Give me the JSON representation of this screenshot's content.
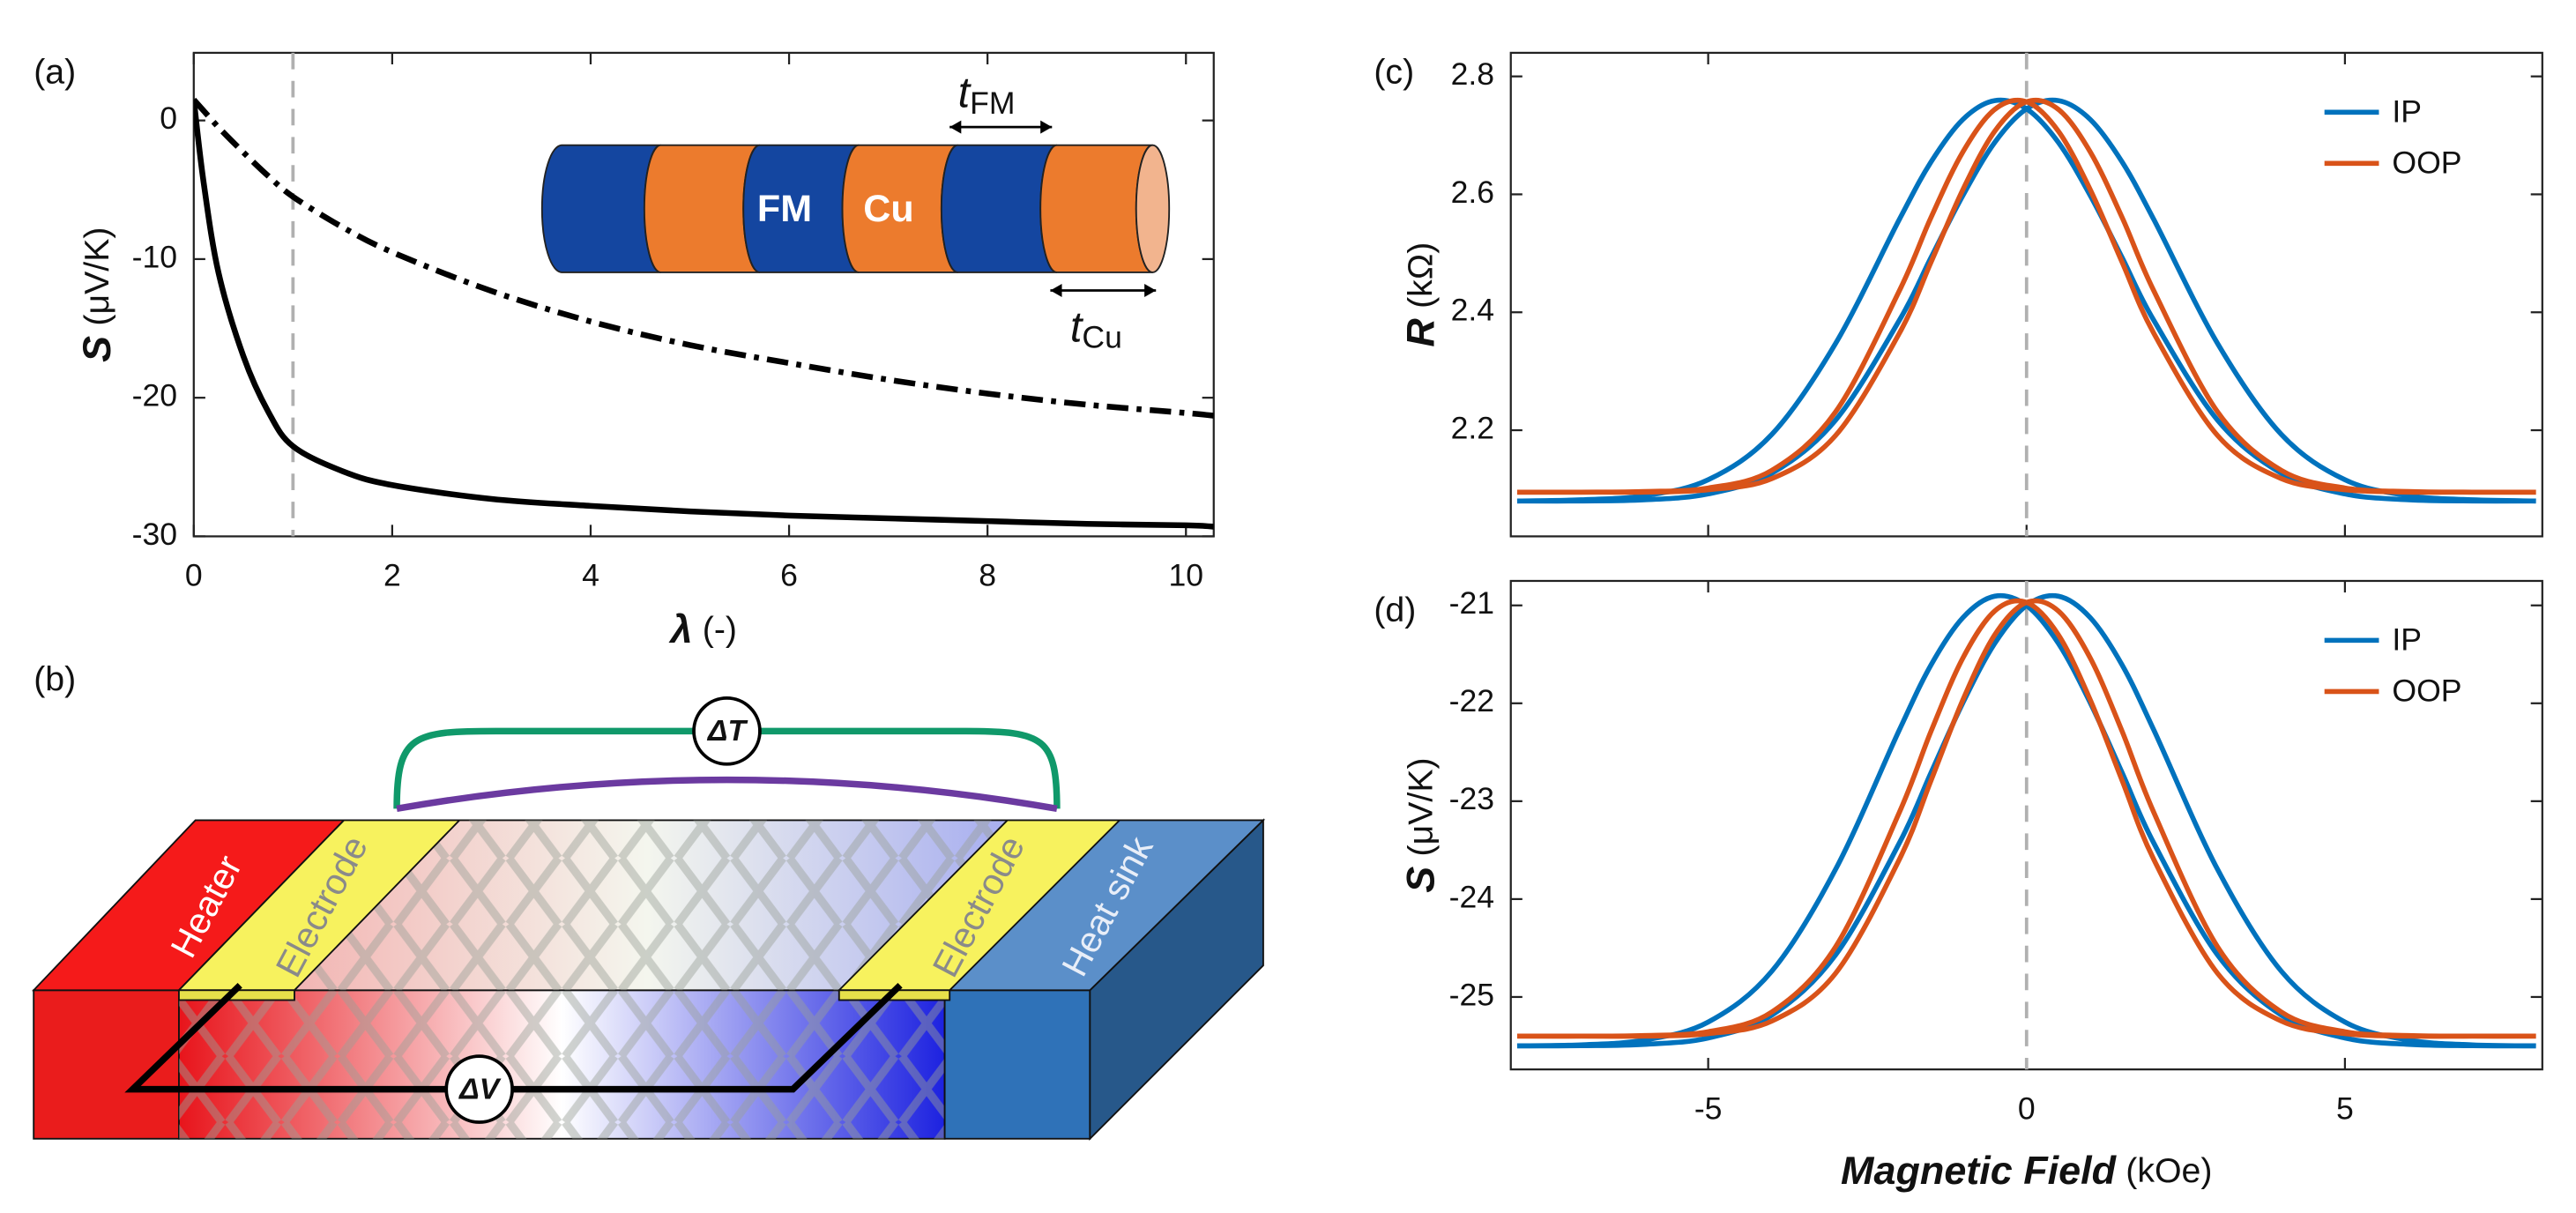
{
  "panel_labels": [
    "(a)",
    "(b)",
    "(c)",
    "(d)"
  ],
  "inset": {
    "fm": "FM",
    "cu": "Cu",
    "t_fm": {
      "symbol": "t",
      "sub": "FM"
    },
    "t_cu": {
      "symbol": "t",
      "sub": "Cu"
    }
  },
  "diagram": {
    "heater": "Heater",
    "electrode_left": "Electrode",
    "electrode_right": "Electrode",
    "heat_sink": "Heat sink",
    "delta_t": "ΔT",
    "delta_v": "ΔV"
  },
  "chart_data": [
    {
      "type": "line",
      "xlabel": {
        "symbol": "λ",
        "unit": "(-)"
      },
      "ylabel": {
        "symbol": "S",
        "unit": "(μV/K)"
      },
      "xlim": [
        0,
        10.28
      ],
      "ylim": [
        -30,
        4.88
      ],
      "xticks": [
        0,
        2,
        4,
        6,
        8,
        10
      ],
      "yticks": [
        0,
        -10,
        -20,
        -30
      ],
      "vline": 1,
      "x": [
        0,
        0.1,
        0.25,
        0.5,
        0.75,
        1,
        1.5,
        2,
        3,
        4,
        5,
        6,
        7,
        8,
        9,
        10,
        10.28
      ],
      "series": [
        {
          "color": "#000000",
          "style": "solid",
          "values": [
            1.5,
            -4.5,
            -11,
            -17,
            -21,
            -23.5,
            -25.3,
            -26.3,
            -27.3,
            -27.8,
            -28.2,
            -28.5,
            -28.7,
            -28.9,
            -29.1,
            -29.2,
            -29.3
          ]
        },
        {
          "color": "#000000",
          "style": "dashdot",
          "values": [
            1.5,
            0.7,
            -0.5,
            -2.3,
            -4,
            -5.5,
            -7.7,
            -9.5,
            -12.3,
            -14.5,
            -16.2,
            -17.5,
            -18.7,
            -19.7,
            -20.5,
            -21.1,
            -21.3
          ]
        }
      ]
    },
    {
      "type": "line",
      "ylabel": {
        "symbol": "R",
        "unit": "(kΩ)"
      },
      "xlim": [
        -8.1,
        8.1
      ],
      "ylim": [
        2.02,
        2.84
      ],
      "xticks": [
        -5,
        0,
        5
      ],
      "xtick_labels": false,
      "yticks": [
        2.2,
        2.4,
        2.6,
        2.8
      ],
      "vline": 0,
      "legend": "northeast",
      "x": [
        -8,
        -7,
        -6,
        -5,
        -4,
        -3,
        -2,
        -1.5,
        -1,
        -0.5,
        0,
        0.5,
        1,
        1.5,
        2,
        3,
        4,
        5,
        6,
        7,
        8
      ],
      "series": [
        {
          "name": "IP",
          "color": "#0072bd",
          "values": [
            [
              2.08,
              2.082,
              2.089,
              2.116,
              2.193,
              2.347,
              2.557,
              2.655,
              2.727,
              2.759,
              2.745,
              2.688,
              2.598,
              2.493,
              2.386,
              2.217,
              2.127,
              2.092,
              2.082,
              2.08,
              2.08
            ],
            [
              2.08,
              2.08,
              2.082,
              2.092,
              2.127,
              2.217,
              2.386,
              2.493,
              2.598,
              2.688,
              2.745,
              2.759,
              2.727,
              2.655,
              2.557,
              2.347,
              2.193,
              2.116,
              2.089,
              2.082,
              2.08
            ]
          ]
        },
        {
          "name": "OOP",
          "color": "#d95319",
          "values": [
            [
              2.095,
              2.095,
              2.096,
              2.102,
              2.132,
              2.231,
              2.436,
              2.561,
              2.672,
              2.744,
              2.757,
              2.707,
              2.608,
              2.485,
              2.364,
              2.191,
              2.118,
              2.099,
              2.095,
              2.095,
              2.095
            ],
            [
              2.095,
              2.095,
              2.095,
              2.099,
              2.118,
              2.191,
              2.364,
              2.485,
              2.608,
              2.707,
              2.757,
              2.744,
              2.672,
              2.561,
              2.436,
              2.231,
              2.132,
              2.102,
              2.096,
              2.095,
              2.095
            ]
          ]
        }
      ]
    },
    {
      "type": "line",
      "xlabel": {
        "symbol": "Magnetic Field",
        "unit": "(kOe)"
      },
      "ylabel": {
        "symbol": "S",
        "unit": "(μV/K)"
      },
      "xlim": [
        -8.1,
        8.1
      ],
      "ylim": [
        -25.74,
        -20.75
      ],
      "xticks": [
        -5,
        0,
        5
      ],
      "yticks": [
        -25,
        -24,
        -23,
        -22,
        -21
      ],
      "vline": 0,
      "legend": "northeast",
      "x": [
        -8,
        -7,
        -6,
        -5,
        -4,
        -3,
        -2,
        -1.5,
        -1,
        -0.5,
        0,
        0.5,
        1,
        1.5,
        2,
        3,
        4,
        5,
        6,
        7,
        8
      ],
      "series": [
        {
          "name": "IP",
          "color": "#0072bd",
          "values": [
            [
              -25.499,
              -25.489,
              -25.44,
              -25.256,
              -24.736,
              -23.697,
              -22.275,
              -21.608,
              -21.125,
              -20.906,
              -21.001,
              -21.388,
              -21.995,
              -22.708,
              -23.43,
              -24.571,
              -25.185,
              -25.419,
              -25.484,
              -25.498,
              -25.5
            ],
            [
              -25.5,
              -25.498,
              -25.484,
              -25.419,
              -25.185,
              -24.571,
              -23.43,
              -22.708,
              -21.995,
              -21.388,
              -21.001,
              -20.906,
              -21.125,
              -21.608,
              -22.275,
              -23.697,
              -24.736,
              -25.256,
              -25.44,
              -25.489,
              -25.499
            ]
          ]
        },
        {
          "name": "OOP",
          "color": "#d95319",
          "values": [
            [
              -25.4,
              -25.4,
              -25.394,
              -25.355,
              -25.153,
              -24.488,
              -23.117,
              -22.285,
              -21.537,
              -21.057,
              -20.97,
              -21.301,
              -21.965,
              -22.788,
              -23.598,
              -24.759,
              -25.246,
              -25.375,
              -25.4,
              -25.4,
              -25.4
            ],
            [
              -25.4,
              -25.4,
              -25.4,
              -25.375,
              -25.246,
              -24.759,
              -23.598,
              -22.788,
              -21.965,
              -21.301,
              -20.97,
              -21.057,
              -21.537,
              -22.285,
              -23.117,
              -24.488,
              -25.153,
              -25.355,
              -25.394,
              -25.4,
              -25.4
            ]
          ]
        }
      ]
    }
  ]
}
